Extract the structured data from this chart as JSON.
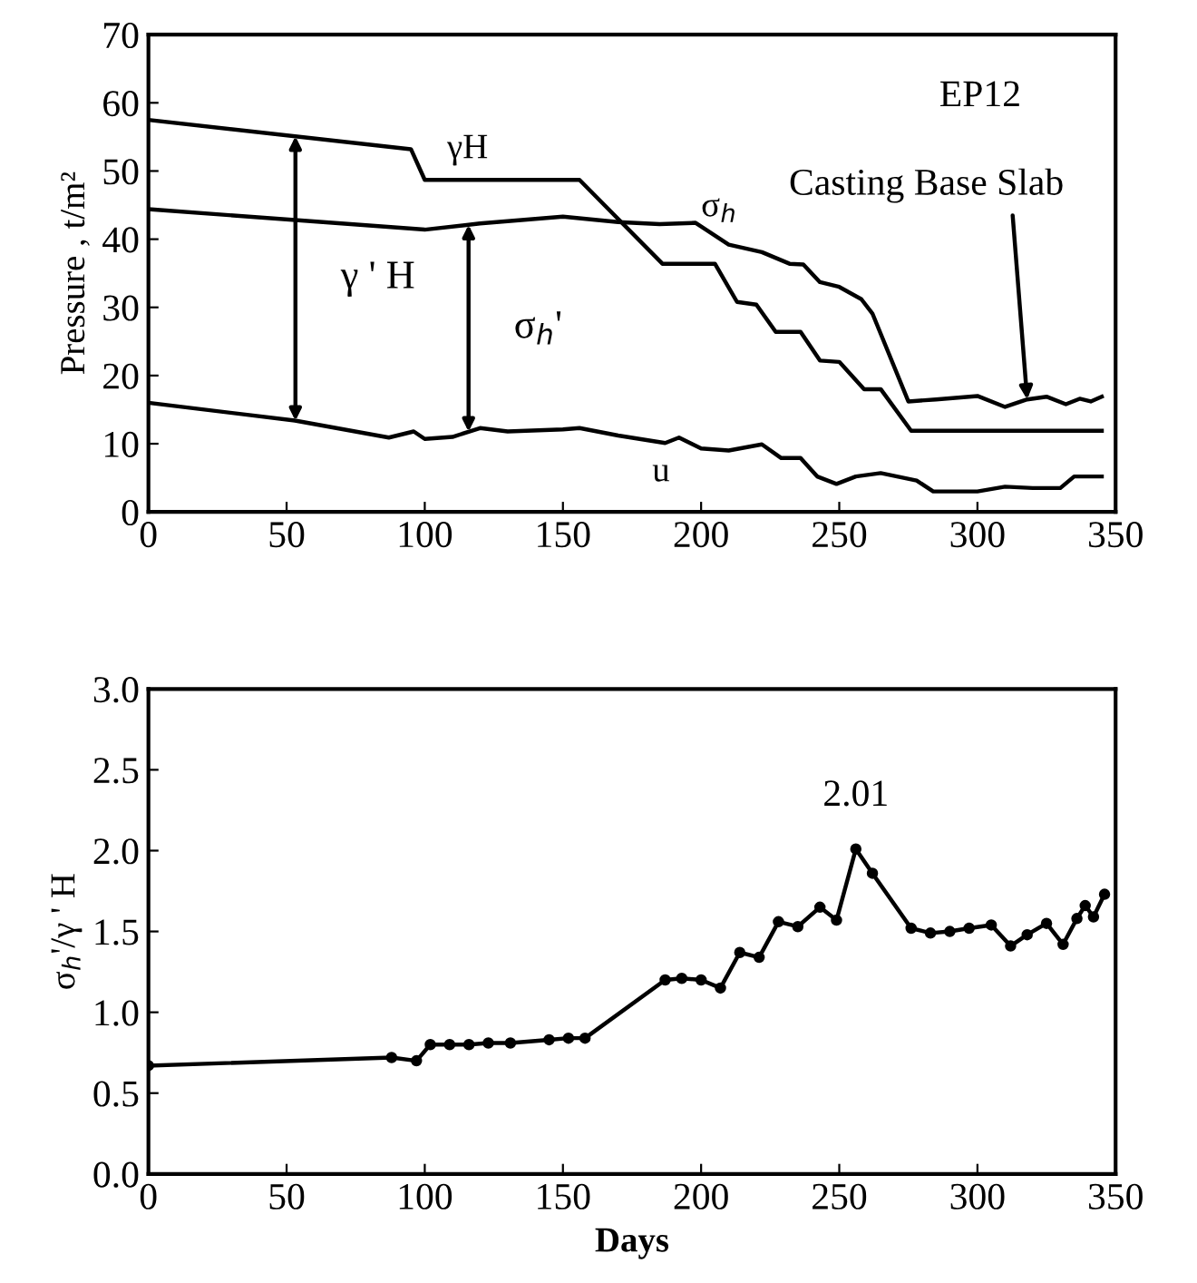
{
  "chart_data": [
    {
      "type": "line",
      "ylabel": "Pressure , t/m²",
      "xlim": [
        0,
        350
      ],
      "xticks": [
        0,
        50,
        100,
        150,
        200,
        250,
        300,
        350
      ],
      "ylim": [
        0,
        70
      ],
      "yticks": [
        0,
        10,
        20,
        30,
        40,
        50,
        60,
        70
      ],
      "grid": false,
      "legend": false,
      "marker": "none",
      "line_style": "solid",
      "series": [
        {
          "name": "γH",
          "color": "#000000",
          "x": [
            0,
            95,
            100,
            156,
            186,
            205,
            213,
            220,
            227,
            236,
            243,
            250,
            259,
            265,
            276,
            345
          ],
          "values": [
            57.5,
            53.2,
            48.7,
            48.7,
            36.4,
            36.4,
            30.8,
            30.4,
            26.4,
            26.4,
            22.2,
            22.0,
            18.0,
            18.0,
            11.9,
            11.9
          ]
        },
        {
          "name": "σ$_{h}$",
          "color": "#000000",
          "x": [
            0,
            100,
            120,
            150,
            170,
            185,
            198,
            210,
            222,
            232,
            237,
            243,
            250,
            258,
            262,
            275,
            285,
            300,
            310,
            318,
            325,
            332,
            337,
            341,
            345
          ],
          "values": [
            44.4,
            41.4,
            42.3,
            43.3,
            42.5,
            42.2,
            42.4,
            39.2,
            38.1,
            36.4,
            36.3,
            33.7,
            33.0,
            31.2,
            29.1,
            16.2,
            16.5,
            17.0,
            15.4,
            16.5,
            16.9,
            15.8,
            16.6,
            16.2,
            16.9
          ]
        },
        {
          "name": "u",
          "color": "#000000",
          "x": [
            0,
            53,
            87,
            96,
            100,
            110,
            120,
            130,
            150,
            156,
            170,
            187,
            192,
            200,
            210,
            222,
            229,
            236,
            242,
            249,
            256,
            265,
            278,
            284,
            300,
            310,
            320,
            330,
            335,
            345
          ],
          "values": [
            16.0,
            13.4,
            10.9,
            11.8,
            10.7,
            11.0,
            12.3,
            11.8,
            12.1,
            12.3,
            11.2,
            10.1,
            10.9,
            9.3,
            9.0,
            9.9,
            7.9,
            7.9,
            5.2,
            4.1,
            5.2,
            5.7,
            4.6,
            3.0,
            3.0,
            3.7,
            3.5,
            3.5,
            5.2,
            5.2
          ]
        }
      ],
      "annotations": [
        "EP12",
        "γ ' H",
        "σ$_{h}$'",
        {
          "text": "Casting Base Slab",
          "x": 318,
          "y": 16.5
        }
      ]
    },
    {
      "type": "line",
      "xlabel": "Days",
      "ylabel": "σ$_{h}$'/γ ' H",
      "xlim": [
        0,
        350
      ],
      "xticks": [
        0,
        50,
        100,
        150,
        200,
        250,
        300,
        350
      ],
      "ylim": [
        0,
        3.0
      ],
      "yticks": [
        {
          "value": 0,
          "label": "0.0"
        },
        0.5,
        {
          "value": 1,
          "label": "1.0"
        },
        1.5,
        {
          "value": 2,
          "label": "2.0"
        },
        2.5,
        {
          "value": 3,
          "label": "3.0"
        }
      ],
      "grid": false,
      "legend": false,
      "marker": "circle",
      "line_style": "solid",
      "series": [
        {
          "color": "#000000",
          "x": [
            0,
            88,
            97,
            102,
            109,
            116,
            123,
            131,
            145,
            152,
            158,
            187,
            193,
            200,
            207,
            214,
            221,
            228,
            235,
            243,
            249,
            256,
            262,
            276,
            283,
            290,
            297,
            305,
            312,
            318,
            325,
            331,
            336,
            339,
            342,
            346
          ],
          "values": [
            0.67,
            0.72,
            0.7,
            0.8,
            0.8,
            0.8,
            0.81,
            0.81,
            0.83,
            0.84,
            0.84,
            1.2,
            1.21,
            1.2,
            1.15,
            1.37,
            1.34,
            1.56,
            1.53,
            1.65,
            1.57,
            2.01,
            1.86,
            1.52,
            1.49,
            1.5,
            1.52,
            1.54,
            1.41,
            1.48,
            1.55,
            1.42,
            1.58,
            1.66,
            1.59,
            1.73
          ]
        }
      ],
      "annotations": [
        {
          "text": "2.01",
          "x": 256,
          "y": 2.01
        }
      ]
    }
  ]
}
